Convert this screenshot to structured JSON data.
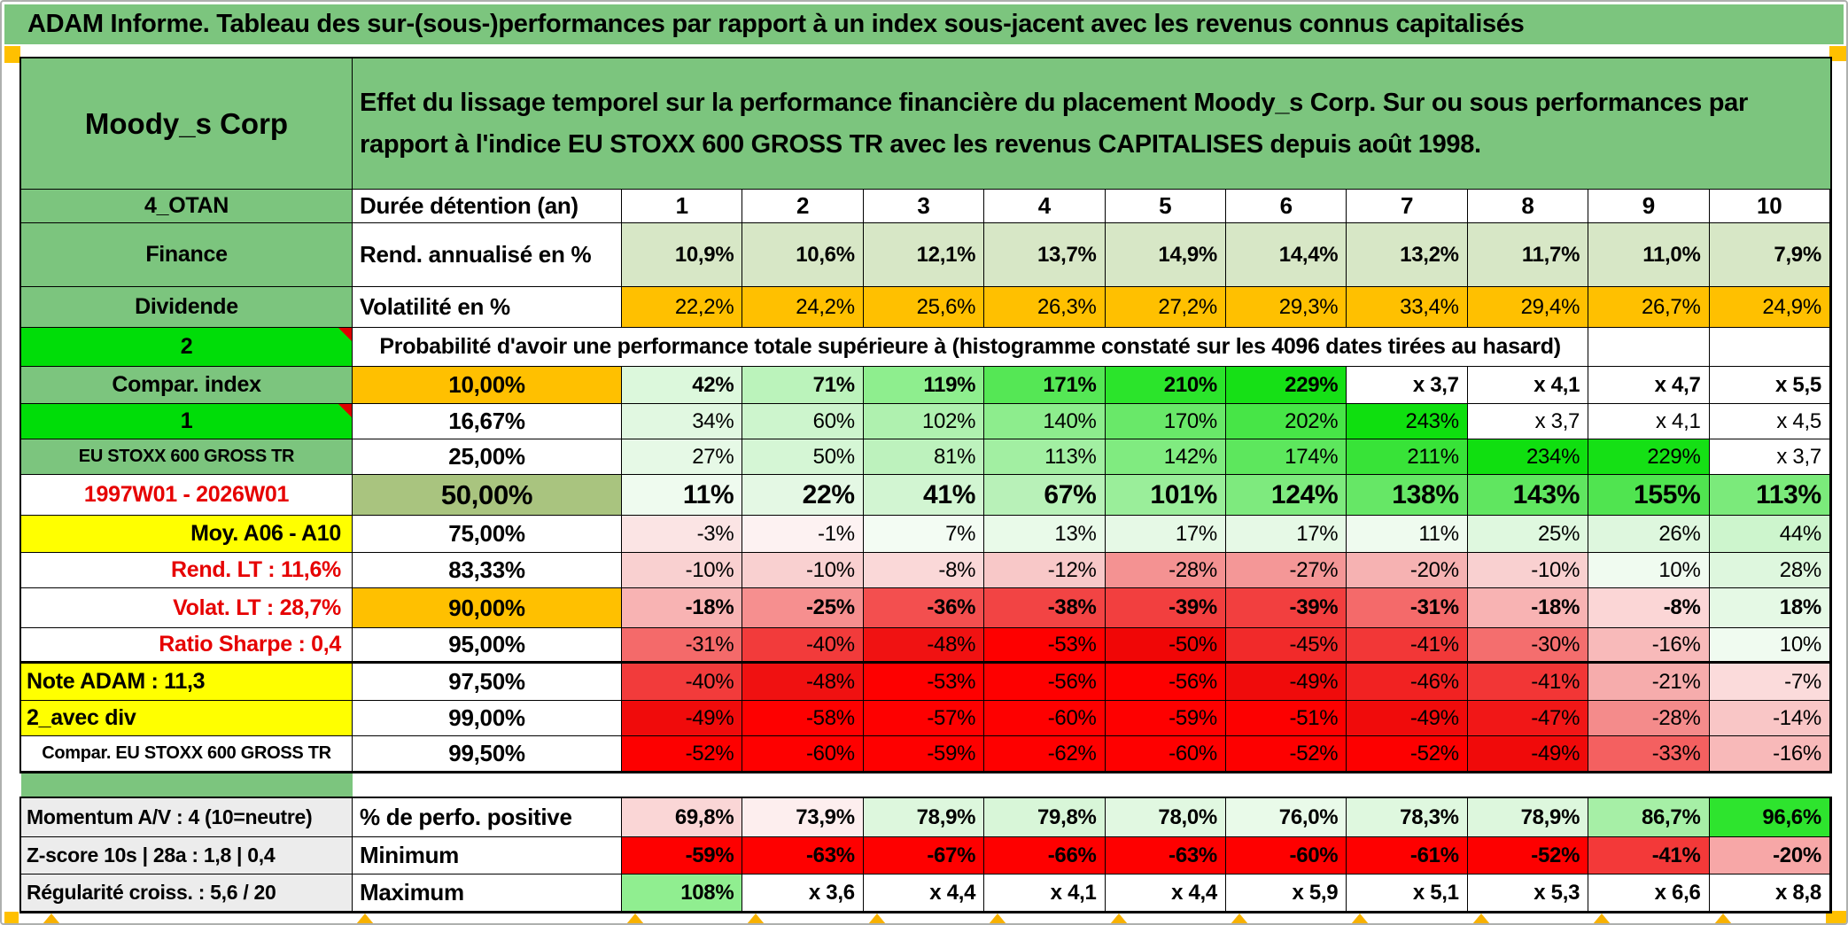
{
  "title": "ADAM Informe. Tableau des sur-(sous-)performances par rapport à un index sous-jacent avec les revenus connus capitalisés",
  "header": {
    "name": "Moody_s Corp",
    "desc": "Effet du lissage temporel sur la performance financière du placement Moody_s Corp. Sur ou sous performances par rapport à l'indice EU STOXX 600 GROSS TR avec les revenus CAPITALISES depuis août 1998."
  },
  "colors": {
    "header_green": "#7cc57e",
    "bright_green": "#00dd08",
    "orange": "#ffc000",
    "yellow": "#ffff00",
    "olive": "#a9c47f",
    "gray_label": "#ececec",
    "red_text": "#e60000",
    "full_red": "#fe0000"
  },
  "grid": {
    "rows": [
      {
        "label": "4_OTAN",
        "lc": "lab lab-green",
        "b": "Durée détention (an)",
        "bc": "bcell b-left",
        "cellClass": "c-center c-bold",
        "cells": [
          "1",
          "2",
          "3",
          "4",
          "5",
          "6",
          "7",
          "8",
          "9",
          "10"
        ],
        "bgs": [
          "#ffffff",
          "#ffffff",
          "#ffffff",
          "#ffffff",
          "#ffffff",
          "#ffffff",
          "#ffffff",
          "#ffffff",
          "#ffffff",
          "#ffffff"
        ]
      },
      {
        "label": "Finance",
        "lc": "lab lab-green",
        "b": "Rend. annualisé en %",
        "bc": "bcell b-left",
        "cellClass": "c-bold",
        "cells": [
          "10,9%",
          "10,6%",
          "12,1%",
          "13,7%",
          "14,9%",
          "14,4%",
          "13,2%",
          "11,7%",
          "11,0%",
          "7,9%"
        ],
        "bgs": [
          "#d7e7c6",
          "#d7e7c6",
          "#d7e7c6",
          "#d7e7c6",
          "#d7e7c6",
          "#d7e7c6",
          "#d7e7c6",
          "#d7e7c6",
          "#d7e7c6",
          "#d7e7c6"
        ]
      },
      {
        "label": "Dividende",
        "lc": "lab lab-green",
        "b": "Volatilité en %",
        "bc": "bcell b-left",
        "cellClass": "",
        "cells": [
          "22,2%",
          "24,2%",
          "25,6%",
          "26,3%",
          "27,2%",
          "29,3%",
          "33,4%",
          "29,4%",
          "26,7%",
          "24,9%"
        ],
        "bgs": [
          "#ffc000",
          "#ffc000",
          "#ffc000",
          "#ffc000",
          "#ffc000",
          "#ffc000",
          "#ffc000",
          "#ffc000",
          "#ffc000",
          "#ffc000"
        ]
      },
      {
        "type": "merged",
        "label": "2",
        "lc": "lab lab-bgreen corner",
        "text": "Probabilité d'avoir une performance totale supérieure à (histogramme constaté sur les 4096 dates tirées au hasard)",
        "cells": [
          "",
          ""
        ],
        "bgs": [
          "#ffffff",
          "#ffffff"
        ]
      },
      {
        "label": "Compar. index",
        "lc": "lab lab-green",
        "b": "10,00%",
        "bc": "bcell b-orange",
        "cellClass": "c-bold",
        "cells": [
          "42%",
          "71%",
          "119%",
          "171%",
          "210%",
          "229%",
          "x 3,7",
          "x 4,1",
          "x 4,7",
          "x 5,5"
        ],
        "bgs": [
          "#dcf8dc",
          "#bbf3bb",
          "#8eee8e",
          "#55e755",
          "#2be42b",
          "#16e016",
          "#ffffff",
          "#ffffff",
          "#ffffff",
          "#ffffff"
        ]
      },
      {
        "label": "1",
        "lc": "lab lab-bgreen corner",
        "b": "16,67%",
        "bc": "bcell",
        "cellClass": "",
        "cells": [
          "34%",
          "60%",
          "102%",
          "140%",
          "170%",
          "202%",
          "243%",
          "x 3,7",
          "x 4,1",
          "x 4,5"
        ],
        "bgs": [
          "#e1f8e1",
          "#cdf5cd",
          "#aff1af",
          "#8ded8d",
          "#69e869",
          "#47e547",
          "#0fdf0f",
          "#ffffff",
          "#ffffff",
          "#ffffff"
        ]
      },
      {
        "label": "EU STOXX 600 GROSS TR",
        "lc": "lab lab-green lab-small",
        "b": "25,00%",
        "bc": "bcell",
        "cellClass": "",
        "cells": [
          "27%",
          "50%",
          "81%",
          "113%",
          "142%",
          "174%",
          "211%",
          "234%",
          "229%",
          "x 3,7"
        ],
        "bgs": [
          "#e6f9e6",
          "#d5f6d5",
          "#bdf2bd",
          "#a2efa2",
          "#80eb80",
          "#5de75d",
          "#38e338",
          "#10df10",
          "#15e015",
          "#ffffff"
        ]
      },
      {
        "label": "1997W01 - 2026W01",
        "lc": "lab lab-red",
        "b": "50,00%",
        "bc": "bcell b-olive",
        "rowClass": "r-big",
        "cells": [
          "11%",
          "22%",
          "41%",
          "67%",
          "101%",
          "124%",
          "138%",
          "143%",
          "155%",
          "113%"
        ],
        "bgs": [
          "#effbef",
          "#e4f8e4",
          "#d2f5d2",
          "#b8f1b8",
          "#9aee9a",
          "#7eea7e",
          "#66e766",
          "#60e660",
          "#50e450",
          "#7bea7b"
        ]
      },
      {
        "label": "Moy. A06 - A10",
        "lc": "lab lab-yellow a-right",
        "b": "75,00%",
        "bc": "bcell",
        "cellClass": "",
        "cells": [
          "-3%",
          "-1%",
          "7%",
          "13%",
          "17%",
          "17%",
          "11%",
          "25%",
          "26%",
          "44%"
        ],
        "bgs": [
          "#fbe4e4",
          "#fdf2f2",
          "#f3fcf3",
          "#e9fae9",
          "#e6f9e6",
          "#e6f9e6",
          "#effbef",
          "#dff8df",
          "#def7de",
          "#cdf5cd"
        ]
      },
      {
        "label": "Rend. LT :  11,6%",
        "lc": "lab lab-red a-right",
        "b": "83,33%",
        "bc": "bcell",
        "cellClass": "",
        "cells": [
          "-10%",
          "-10%",
          "-8%",
          "-12%",
          "-28%",
          "-27%",
          "-20%",
          "-10%",
          "10%",
          "28%"
        ],
        "bgs": [
          "#f9d0d0",
          "#f9d0d0",
          "#fad8d8",
          "#f8c8c8",
          "#f49292",
          "#f49797",
          "#f6b2b2",
          "#f9d0d0",
          "#f0fbf0",
          "#def7de"
        ]
      },
      {
        "label": "Volat. LT :  28,7%",
        "lc": "lab lab-red a-right",
        "b": "90,00%",
        "bc": "bcell b-orange",
        "cellClass": "c-bold",
        "cells": [
          "-18%",
          "-25%",
          "-36%",
          "-38%",
          "-39%",
          "-39%",
          "-31%",
          "-18%",
          "-8%",
          "18%"
        ],
        "bgs": [
          "#f8b3b3",
          "#f68f8f",
          "#f34f4f",
          "#f24444",
          "#f23f3f",
          "#f23f3f",
          "#f46a6a",
          "#f8b3b3",
          "#fbd6d6",
          "#e5f9e5"
        ]
      },
      {
        "label": "Ratio Sharpe :  0,4",
        "lc": "lab lab-red a-right",
        "b": "95,00%",
        "bc": "bcell",
        "cellClass": "",
        "rowClass": "thick-b",
        "cells": [
          "-31%",
          "-40%",
          "-48%",
          "-53%",
          "-50%",
          "-45%",
          "-41%",
          "-30%",
          "-16%",
          "10%"
        ],
        "bgs": [
          "#f46a6a",
          "#f23b3b",
          "#f01212",
          "#fe0000",
          "#f00606",
          "#f12a2a",
          "#f23737",
          "#f46e6e",
          "#f8baba",
          "#f0fbf0"
        ]
      },
      {
        "label": "Note ADAM : 11,3",
        "lc": "lab lab-yellow a-left",
        "b": "97,50%",
        "bc": "bcell",
        "cellClass": "",
        "cells": [
          "-40%",
          "-48%",
          "-53%",
          "-56%",
          "-56%",
          "-49%",
          "-46%",
          "-41%",
          "-21%",
          "-7%"
        ],
        "bgs": [
          "#f23b3b",
          "#f01111",
          "#fe0000",
          "#fe0000",
          "#fe0000",
          "#f00b0b",
          "#f12222",
          "#f23636",
          "#f6acac",
          "#fbdbdb"
        ]
      },
      {
        "label": "2_avec div",
        "lc": "lab lab-yellow a-left",
        "b": "99,00%",
        "bc": "bcell",
        "cellClass": "",
        "cells": [
          "-49%",
          "-58%",
          "-57%",
          "-60%",
          "-59%",
          "-51%",
          "-49%",
          "-47%",
          "-28%",
          "-14%"
        ],
        "bgs": [
          "#f00b0b",
          "#fe0000",
          "#fe0000",
          "#fe0000",
          "#fe0000",
          "#fd0000",
          "#f00b0b",
          "#f11717",
          "#f48b8b",
          "#f9c6c6"
        ]
      },
      {
        "label": "Compar. EU STOXX 600 GROSS TR",
        "lc": "lab lab-small",
        "b": "99,50%",
        "bc": "bcell",
        "cellClass": "",
        "cells": [
          "-52%",
          "-60%",
          "-59%",
          "-62%",
          "-60%",
          "-52%",
          "-52%",
          "-49%",
          "-33%",
          "-16%"
        ],
        "bgs": [
          "#fd0000",
          "#fe0000",
          "#fe0000",
          "#fe0000",
          "#fe0000",
          "#fd0000",
          "#fd0000",
          "#f00a0a",
          "#f46060",
          "#f8b9b9"
        ]
      }
    ]
  },
  "bottom": {
    "rows": [
      {
        "label": "Momentum A/V : 4 (10=neutre)",
        "lc": "lab lab-gray a-left",
        "b": "% de perfo. positive",
        "bc": "bcell b-left",
        "cellClass": "c-bold",
        "cells": [
          "69,8%",
          "73,9%",
          "78,9%",
          "79,8%",
          "78,0%",
          "76,0%",
          "78,3%",
          "78,9%",
          "86,7%",
          "96,6%"
        ],
        "bgs": [
          "#fad6d6",
          "#fdeeee",
          "#ddf7dd",
          "#d8f6d8",
          "#e1f8e1",
          "#e9fae9",
          "#dff8df",
          "#ddf7dd",
          "#a6efa6",
          "#2ee42e"
        ]
      },
      {
        "label": "Z-score 10s | 28a : 1,8 | 0,4",
        "lc": "lab lab-gray a-left",
        "b": "Minimum",
        "bc": "bcell b-left",
        "cellClass": "c-bold",
        "cells": [
          "-59%",
          "-63%",
          "-67%",
          "-66%",
          "-63%",
          "-60%",
          "-61%",
          "-52%",
          "-41%",
          "-20%"
        ],
        "bgs": [
          "#fe0000",
          "#fe0000",
          "#fe0000",
          "#fe0000",
          "#fe0000",
          "#fe0000",
          "#fe0000",
          "#fd0000",
          "#f33939",
          "#f7a7a7"
        ]
      },
      {
        "label": "Régularité croiss. : 5,6 / 20",
        "lc": "lab lab-gray a-left",
        "b": "Maximum",
        "bc": "bcell b-left",
        "cellClass": "c-bold",
        "cells": [
          "108%",
          "x 3,6",
          "x 4,4",
          "x 4,1",
          "x 4,4",
          "x 5,9",
          "x 5,1",
          "x 5,3",
          "x 6,6",
          "x 8,8"
        ],
        "bgs": [
          "#90ee90",
          "#ffffff",
          "#ffffff",
          "#ffffff",
          "#ffffff",
          "#ffffff",
          "#ffffff",
          "#ffffff",
          "#ffffff",
          "#ffffff"
        ]
      }
    ]
  }
}
